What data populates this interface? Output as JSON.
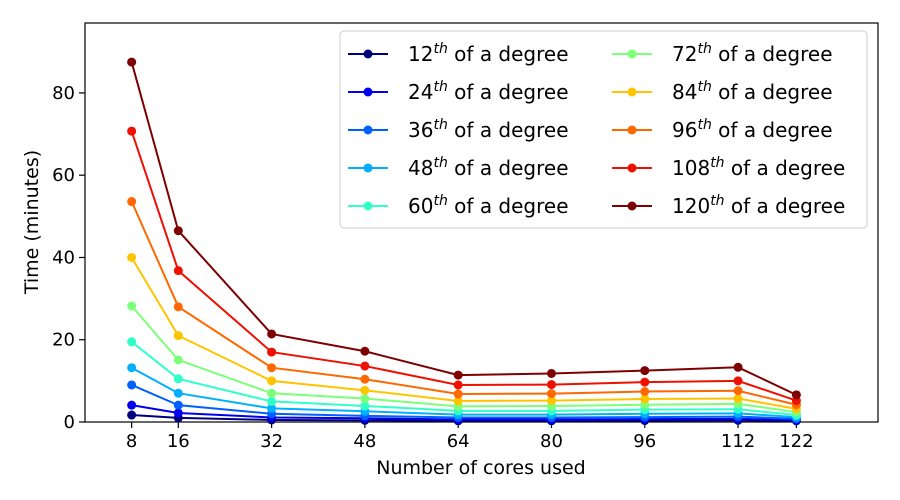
{
  "chart_data": {
    "type": "line",
    "title": "",
    "xlabel": "Number of cores used",
    "ylabel": "Time (minutes)",
    "x": [
      8,
      16,
      32,
      48,
      64,
      80,
      96,
      112,
      122
    ],
    "xticks": [
      "8",
      "16",
      "32",
      "48",
      "64",
      "80",
      "96",
      "112",
      "122"
    ],
    "yticks": [
      "0",
      "20",
      "40",
      "60",
      "80"
    ],
    "ytick_values": [
      0,
      20,
      40,
      60,
      80
    ],
    "xlim": [
      0,
      136
    ],
    "ylim": [
      0,
      97
    ],
    "grid": false,
    "legend_position": "top-right",
    "legend_columns": 2,
    "series": [
      {
        "name": "12th of a degree",
        "num": "12",
        "sup": "th",
        "suffix": " of a degree",
        "color": "#00007f",
        "values": [
          1.7,
          1.0,
          0.5,
          0.4,
          0.3,
          0.3,
          0.35,
          0.4,
          0.3
        ]
      },
      {
        "name": "24th of a degree",
        "num": "24",
        "sup": "th",
        "suffix": " of a degree",
        "color": "#0000ee",
        "values": [
          4.1,
          2.2,
          1.1,
          0.9,
          0.6,
          0.6,
          0.7,
          0.75,
          0.5
        ]
      },
      {
        "name": "36th of a degree",
        "num": "36",
        "sup": "th",
        "suffix": " of a degree",
        "color": "#0060ff",
        "values": [
          9.0,
          4.1,
          2.0,
          1.5,
          1.1,
          1.1,
          1.2,
          1.3,
          0.8
        ]
      },
      {
        "name": "48th of a degree",
        "num": "48",
        "sup": "th",
        "suffix": " of a degree",
        "color": "#00b0ff",
        "values": [
          13.2,
          7.0,
          3.3,
          2.6,
          1.8,
          1.8,
          2.0,
          2.1,
          1.2
        ]
      },
      {
        "name": "60th of a degree",
        "num": "60",
        "sup": "th",
        "suffix": " of a degree",
        "color": "#30ffc8",
        "values": [
          19.5,
          10.5,
          5.0,
          3.9,
          2.7,
          2.7,
          3.0,
          3.1,
          1.7
        ]
      },
      {
        "name": "72th of a degree",
        "num": "72",
        "sup": "th",
        "suffix": " of a degree",
        "color": "#7cff79",
        "values": [
          28.2,
          15.1,
          7.0,
          5.7,
          3.8,
          3.9,
          4.2,
          4.4,
          2.4
        ]
      },
      {
        "name": "84th of a degree",
        "num": "84",
        "sup": "th",
        "suffix": " of a degree",
        "color": "#ffc400",
        "values": [
          40.0,
          21.0,
          10.0,
          7.7,
          5.1,
          5.2,
          5.6,
          5.7,
          3.2
        ]
      },
      {
        "name": "96th of a degree",
        "num": "96",
        "sup": "th",
        "suffix": " of a degree",
        "color": "#ff6800",
        "values": [
          53.6,
          28.0,
          13.2,
          10.4,
          6.8,
          6.9,
          7.4,
          7.6,
          4.2
        ]
      },
      {
        "name": "108th of a degree",
        "num": "108",
        "sup": "th",
        "suffix": " of a degree",
        "color": "#ee1000",
        "values": [
          70.7,
          36.8,
          17.0,
          13.6,
          9.0,
          9.1,
          9.7,
          10.0,
          5.2
        ]
      },
      {
        "name": "120th of a degree",
        "num": "120",
        "sup": "th",
        "suffix": " of a degree",
        "color": "#7f0000",
        "values": [
          87.5,
          46.5,
          21.4,
          17.2,
          11.4,
          11.8,
          12.5,
          13.3,
          6.6
        ]
      }
    ]
  }
}
